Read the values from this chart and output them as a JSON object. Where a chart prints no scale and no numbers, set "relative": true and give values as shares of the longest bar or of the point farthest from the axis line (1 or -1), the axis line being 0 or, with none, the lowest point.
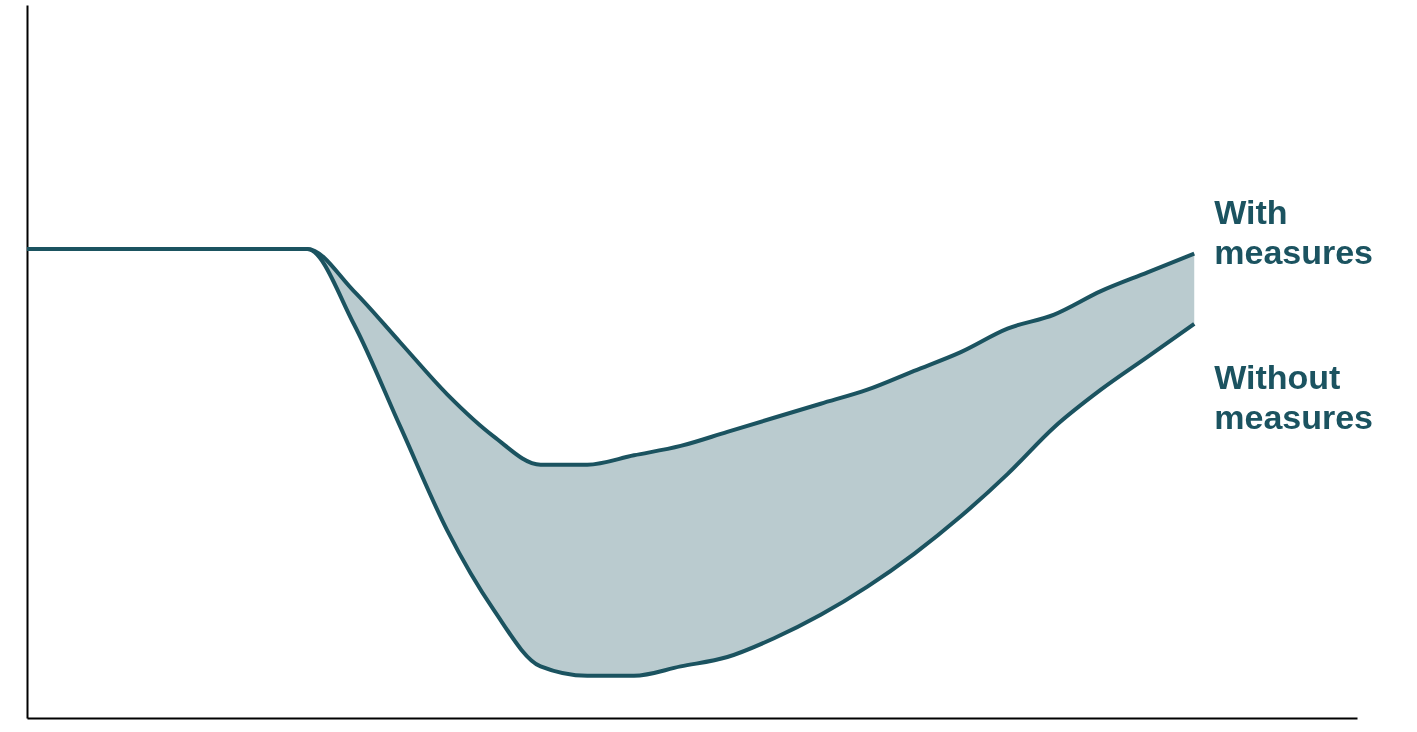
{
  "chart_data": {
    "type": "line",
    "relative": true,
    "categories": [
      null,
      null,
      null,
      null,
      null,
      null,
      null,
      null,
      null,
      null,
      null,
      null,
      null,
      null,
      null,
      null,
      null,
      null,
      null,
      null,
      null,
      null,
      null,
      null,
      null,
      null
    ],
    "series": [
      {
        "name": "With measures",
        "color": "#1b5360",
        "values": [
          1.0,
          1.0,
          1.0,
          1.0,
          1.0,
          1.0,
          1.0,
          0.91,
          0.8,
          0.69,
          0.6,
          0.54,
          0.54,
          0.56,
          0.58,
          0.61,
          0.64,
          0.67,
          0.7,
          0.74,
          0.78,
          0.83,
          0.86,
          0.91,
          0.95,
          0.99
        ],
        "lower": [
          1.0,
          1.0,
          1.0,
          1.0,
          1.0,
          1.0,
          1.0,
          0.84,
          0.62,
          0.4,
          0.23,
          0.11,
          0.09,
          0.09,
          0.11,
          0.13,
          0.17,
          0.22,
          0.28,
          0.35,
          0.43,
          0.52,
          0.62,
          0.7,
          0.77,
          0.84
        ],
        "upper": [
          1.0,
          1.0,
          1.0,
          1.0,
          1.0,
          1.0,
          1.0,
          0.91,
          0.8,
          0.69,
          0.6,
          0.54,
          0.54,
          0.56,
          0.58,
          0.61,
          0.64,
          0.67,
          0.7,
          0.74,
          0.78,
          0.83,
          0.86,
          0.91,
          0.95,
          0.99
        ]
      },
      {
        "name": "Without measures",
        "color": "#1b5360",
        "values": [
          1.0,
          1.0,
          1.0,
          1.0,
          1.0,
          1.0,
          1.0,
          0.84,
          0.62,
          0.4,
          0.23,
          0.11,
          0.09,
          0.09,
          0.11,
          0.13,
          0.17,
          0.22,
          0.28,
          0.35,
          0.43,
          0.52,
          0.62,
          0.7,
          0.77,
          0.84
        ]
      }
    ]
  }
}
